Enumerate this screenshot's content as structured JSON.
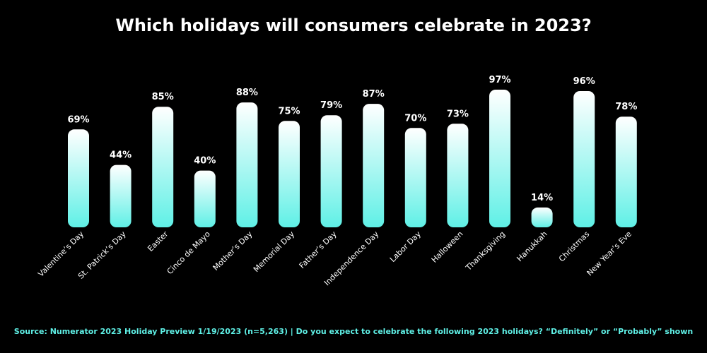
{
  "page": {
    "title": "Which holidays will consumers celebrate in 2023?",
    "source": "Source: Numerator 2023 Holiday Preview 1/19/2023 (n=5,263) | Do you expect to celebrate the following 2023 holidays? “Definitely” or “Probably” shown"
  },
  "colors": {
    "background": "#000000",
    "bar_top": "#ffffff",
    "bar_bottom": "#5ff0e6",
    "text": "#ffffff",
    "source_text": "#5ff0e6"
  },
  "chart_data": {
    "type": "bar",
    "title": "Which holidays will consumers celebrate in 2023?",
    "xlabel": "",
    "ylabel": "",
    "ylim": [
      0,
      100
    ],
    "grid": false,
    "categories": [
      "Valentine’s Day",
      "St. Patrick’s Day",
      "Easter",
      "Cinco de Mayo",
      "Mother’s Day",
      "Memorial Day",
      "Father’s Day",
      "Independence Day",
      "Labor Day",
      "Halloween",
      "Thanksgiving",
      "Hanukkah",
      "Christmas",
      "New Year’s Eve"
    ],
    "values": [
      69,
      44,
      85,
      40,
      88,
      75,
      79,
      87,
      70,
      73,
      97,
      14,
      96,
      78
    ],
    "value_labels": [
      "69%",
      "44%",
      "85%",
      "40%",
      "88%",
      "75%",
      "79%",
      "87%",
      "70%",
      "73%",
      "97%",
      "14%",
      "96%",
      "78%"
    ]
  }
}
